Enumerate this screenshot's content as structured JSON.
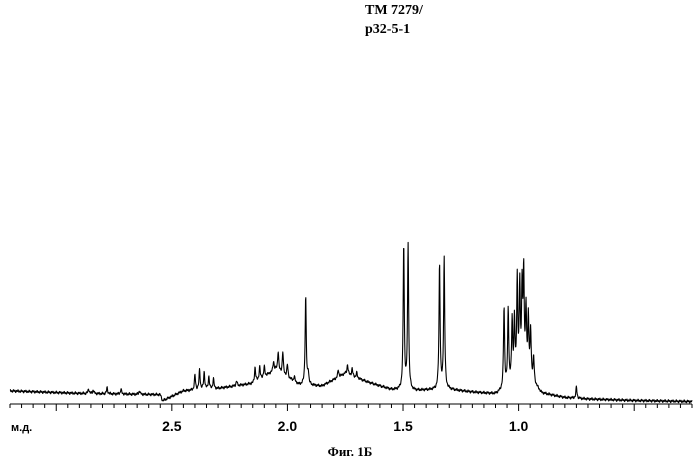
{
  "title_lines": [
    "TM 7279/",
    "p32-5-1"
  ],
  "caption": "Фиг. 1Б",
  "chart_data": {
    "type": "line",
    "title": "TM 7279/ p32-5-1",
    "xlabel": "м.д.",
    "ylabel": "",
    "x_reversed": true,
    "xlim": [
      3.2,
      0.25
    ],
    "ylim": [
      0,
      100
    ],
    "x_ticks": [
      2.5,
      2.0,
      1.5,
      1.0
    ],
    "x_tick_labels": [
      "2.5",
      "2.0",
      "1.5",
      "1.0"
    ],
    "grid": false,
    "line_color": "#000000",
    "baseline": [
      [
        3.2,
        4.5
      ],
      [
        2.9,
        3.5
      ],
      [
        2.7,
        3.2
      ],
      [
        2.55,
        3.0
      ],
      [
        2.54,
        0.5
      ],
      [
        2.45,
        4.5
      ],
      [
        2.3,
        5.5
      ],
      [
        2.15,
        7.5
      ],
      [
        2.05,
        13.0
      ],
      [
        1.95,
        7.0
      ],
      [
        1.85,
        6.5
      ],
      [
        1.75,
        11.5
      ],
      [
        1.65,
        8.0
      ],
      [
        1.55,
        5.0
      ],
      [
        1.45,
        4.5
      ],
      [
        1.4,
        4.8
      ],
      [
        1.3,
        5.0
      ],
      [
        1.2,
        4.0
      ],
      [
        1.1,
        3.2
      ],
      [
        1.06,
        5.0
      ],
      [
        1.0,
        8.5
      ],
      [
        0.95,
        9.0
      ],
      [
        0.9,
        3.5
      ],
      [
        0.8,
        1.8
      ],
      [
        0.7,
        1.2
      ],
      [
        0.5,
        0.6
      ],
      [
        0.25,
        0.2
      ]
    ],
    "peaks": [
      [
        2.86,
        2.0
      ],
      [
        2.84,
        1.5
      ],
      [
        2.78,
        2.5
      ],
      [
        2.72,
        2.0
      ],
      [
        2.64,
        1.5
      ],
      [
        2.4,
        6.0
      ],
      [
        2.38,
        8.0
      ],
      [
        2.36,
        7.0
      ],
      [
        2.34,
        5.0
      ],
      [
        2.32,
        4.0
      ],
      [
        2.22,
        2.0
      ],
      [
        2.14,
        6.0
      ],
      [
        2.12,
        5.0
      ],
      [
        2.1,
        4.0
      ],
      [
        2.06,
        4.0
      ],
      [
        2.04,
        8.0
      ],
      [
        2.02,
        9.0
      ],
      [
        2.0,
        5.0
      ],
      [
        1.97,
        2.0
      ],
      [
        1.921,
        36.0
      ],
      [
        1.91,
        5.0
      ],
      [
        1.78,
        3.0
      ],
      [
        1.74,
        4.0
      ],
      [
        1.72,
        3.0
      ],
      [
        1.7,
        2.0
      ],
      [
        1.497,
        59.0
      ],
      [
        1.478,
        59.0
      ],
      [
        1.342,
        51.0
      ],
      [
        1.322,
        53.0
      ],
      [
        1.063,
        33.0
      ],
      [
        1.045,
        31.0
      ],
      [
        1.028,
        25.0
      ],
      [
        1.018,
        24.0
      ],
      [
        1.006,
        40.0
      ],
      [
        0.995,
        37.0
      ],
      [
        0.985,
        34.0
      ],
      [
        0.978,
        41.0
      ],
      [
        0.968,
        27.0
      ],
      [
        0.958,
        24.0
      ],
      [
        0.948,
        19.0
      ],
      [
        0.935,
        10.0
      ],
      [
        0.75,
        4.5
      ]
    ]
  }
}
